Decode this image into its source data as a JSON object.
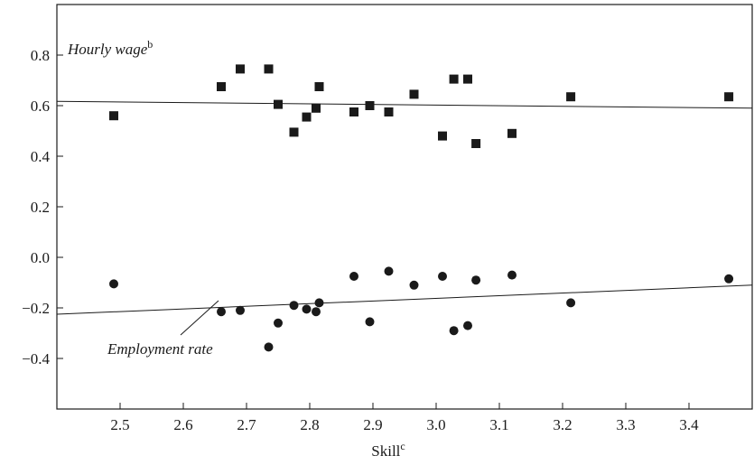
{
  "chart_data": {
    "type": "scatter",
    "title": "",
    "xlabel": "Skill",
    "xlabel_superscript": "c",
    "ylabel": "",
    "xlim": [
      2.4,
      3.5
    ],
    "ylim": [
      -0.6,
      1.0
    ],
    "x_ticks": [
      "2.5",
      "2.6",
      "2.7",
      "2.8",
      "2.9",
      "3.0",
      "3.1",
      "3.2",
      "3.3",
      "3.4"
    ],
    "y_ticks": [
      "−0.4",
      "−0.2",
      "0.0",
      "0.2",
      "0.4",
      "0.6",
      "0.8"
    ],
    "x_tick_values": [
      2.5,
      2.6,
      2.7,
      2.8,
      2.9,
      3.0,
      3.1,
      3.2,
      3.3,
      3.4
    ],
    "y_tick_values": [
      -0.4,
      -0.2,
      0.0,
      0.2,
      0.4,
      0.6,
      0.8
    ],
    "grid": false,
    "series": [
      {
        "name": "Hourly wage",
        "name_superscript": "b",
        "marker": "square",
        "color": "#1a1a1a",
        "x": [
          2.49,
          2.66,
          2.69,
          2.735,
          2.75,
          2.775,
          2.795,
          2.81,
          2.815,
          2.87,
          2.895,
          2.925,
          2.965,
          3.01,
          3.028,
          3.05,
          3.063,
          3.12,
          3.213,
          3.463
        ],
        "y": [
          0.56,
          0.675,
          0.745,
          0.745,
          0.605,
          0.495,
          0.555,
          0.59,
          0.675,
          0.575,
          0.6,
          0.575,
          0.645,
          0.48,
          0.705,
          0.705,
          0.45,
          0.49,
          0.635,
          0.635
        ],
        "fit": {
          "x": [
            2.4,
            3.5
          ],
          "y": [
            0.617,
            0.59
          ]
        }
      },
      {
        "name": "Employment rate",
        "marker": "circle",
        "color": "#1a1a1a",
        "x": [
          2.49,
          2.66,
          2.69,
          2.735,
          2.75,
          2.775,
          2.795,
          2.81,
          2.815,
          2.87,
          2.895,
          2.925,
          2.965,
          3.01,
          3.028,
          3.05,
          3.063,
          3.12,
          3.213,
          3.463
        ],
        "y": [
          -0.105,
          -0.215,
          -0.21,
          -0.355,
          -0.26,
          -0.19,
          -0.205,
          -0.215,
          -0.18,
          -0.075,
          -0.255,
          -0.055,
          -0.11,
          -0.075,
          -0.29,
          -0.27,
          -0.09,
          -0.07,
          -0.18,
          -0.085
        ],
        "fit": {
          "x": [
            2.4,
            3.5
          ],
          "y": [
            -0.225,
            -0.11
          ]
        }
      }
    ]
  }
}
